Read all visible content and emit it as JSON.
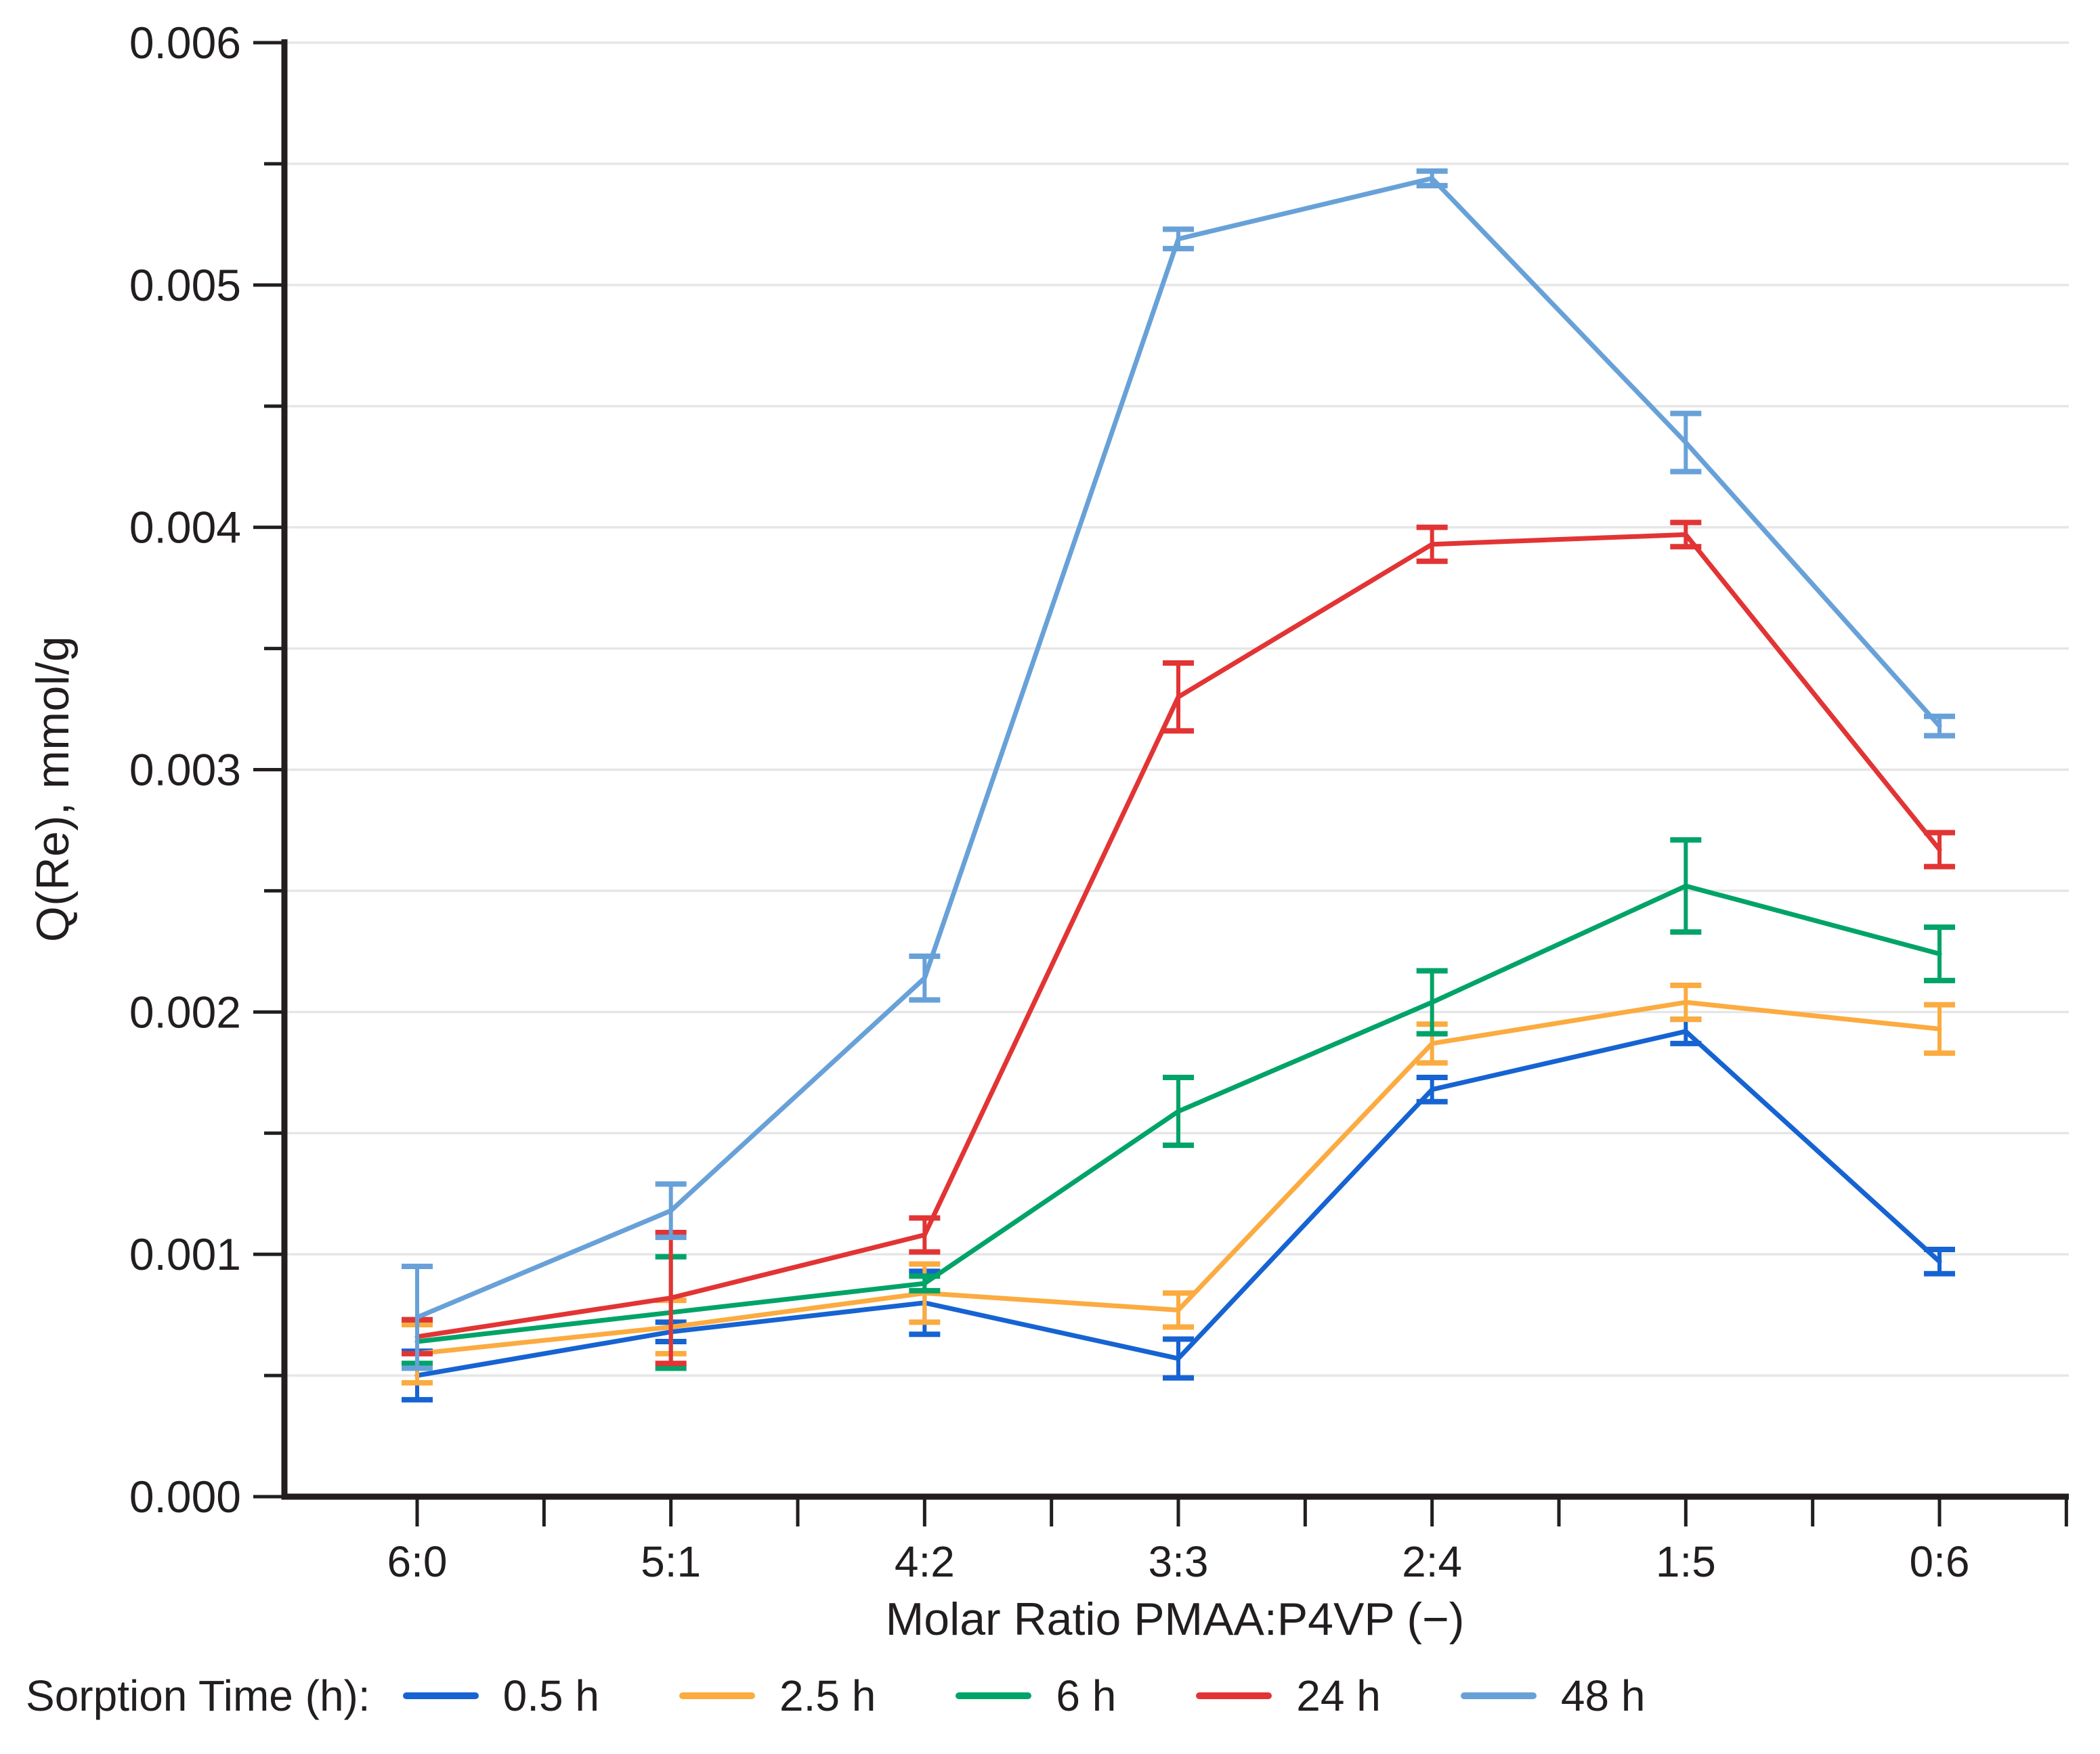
{
  "figure": {
    "background": "#ffffff",
    "text_color": "#221e20",
    "grid_color": "#e6e6e6",
    "axis_color": "#221e20"
  },
  "chart_data": {
    "type": "line",
    "title": "",
    "xlabel": "Molar Ratio PMAA:P4VP (−)",
    "ylabel": "Q(Re), mmol/g",
    "categories": [
      "6:0",
      "5:1",
      "4:2",
      "3:3",
      "2:4",
      "1:5",
      "0:6"
    ],
    "ylim": [
      0,
      0.006
    ],
    "ytick_step": 0.001,
    "ytick_labels": [
      "0.000",
      "0.001",
      "0.002",
      "0.003",
      "0.004",
      "0.005",
      "0.006"
    ],
    "minor_ytick_step": 0.0005,
    "grid": "horizontal every 0.0005, no vertical gridlines",
    "legend_position": "bottom",
    "error_bars": true,
    "series": [
      {
        "name": "0.5 h",
        "color": "#1663d2",
        "values": [
          0.0005,
          0.00068,
          0.0008,
          0.00057,
          0.00168,
          0.00192,
          0.00097
        ],
        "errors": [
          0.0001,
          4e-05,
          0.00013,
          8e-05,
          5e-05,
          5e-05,
          5e-05
        ]
      },
      {
        "name": "2.5 h",
        "color": "#fbab40",
        "values": [
          0.00059,
          0.0007,
          0.00084,
          0.00077,
          0.00187,
          0.00204,
          0.00193
        ],
        "errors": [
          0.00012,
          0.00011,
          0.00012,
          7e-05,
          8e-05,
          7e-05,
          0.0001
        ]
      },
      {
        "name": "6 h",
        "color": "#00a368",
        "values": [
          0.00064,
          0.00076,
          0.00088,
          0.00159,
          0.00204,
          0.00252,
          0.00224
        ],
        "errors": [
          9e-05,
          0.00023,
          3e-05,
          0.00014,
          0.00013,
          0.00019,
          0.00011
        ]
      },
      {
        "name": "24 h",
        "color": "#e23434",
        "values": [
          0.00066,
          0.00082,
          0.00108,
          0.0033,
          0.00393,
          0.00397,
          0.00267
        ],
        "errors": [
          7e-05,
          0.00027,
          7e-05,
          0.00014,
          7e-05,
          5e-05,
          7e-05
        ]
      },
      {
        "name": "48 h",
        "color": "#68a1d8",
        "values": [
          0.00074,
          0.00118,
          0.00214,
          0.00519,
          0.00544,
          0.00435,
          0.00318
        ],
        "errors": [
          0.00021,
          0.00011,
          9e-05,
          4e-05,
          3e-05,
          0.00012,
          4e-05
        ]
      }
    ]
  },
  "legend": {
    "title": "Sorption Time (h):"
  }
}
